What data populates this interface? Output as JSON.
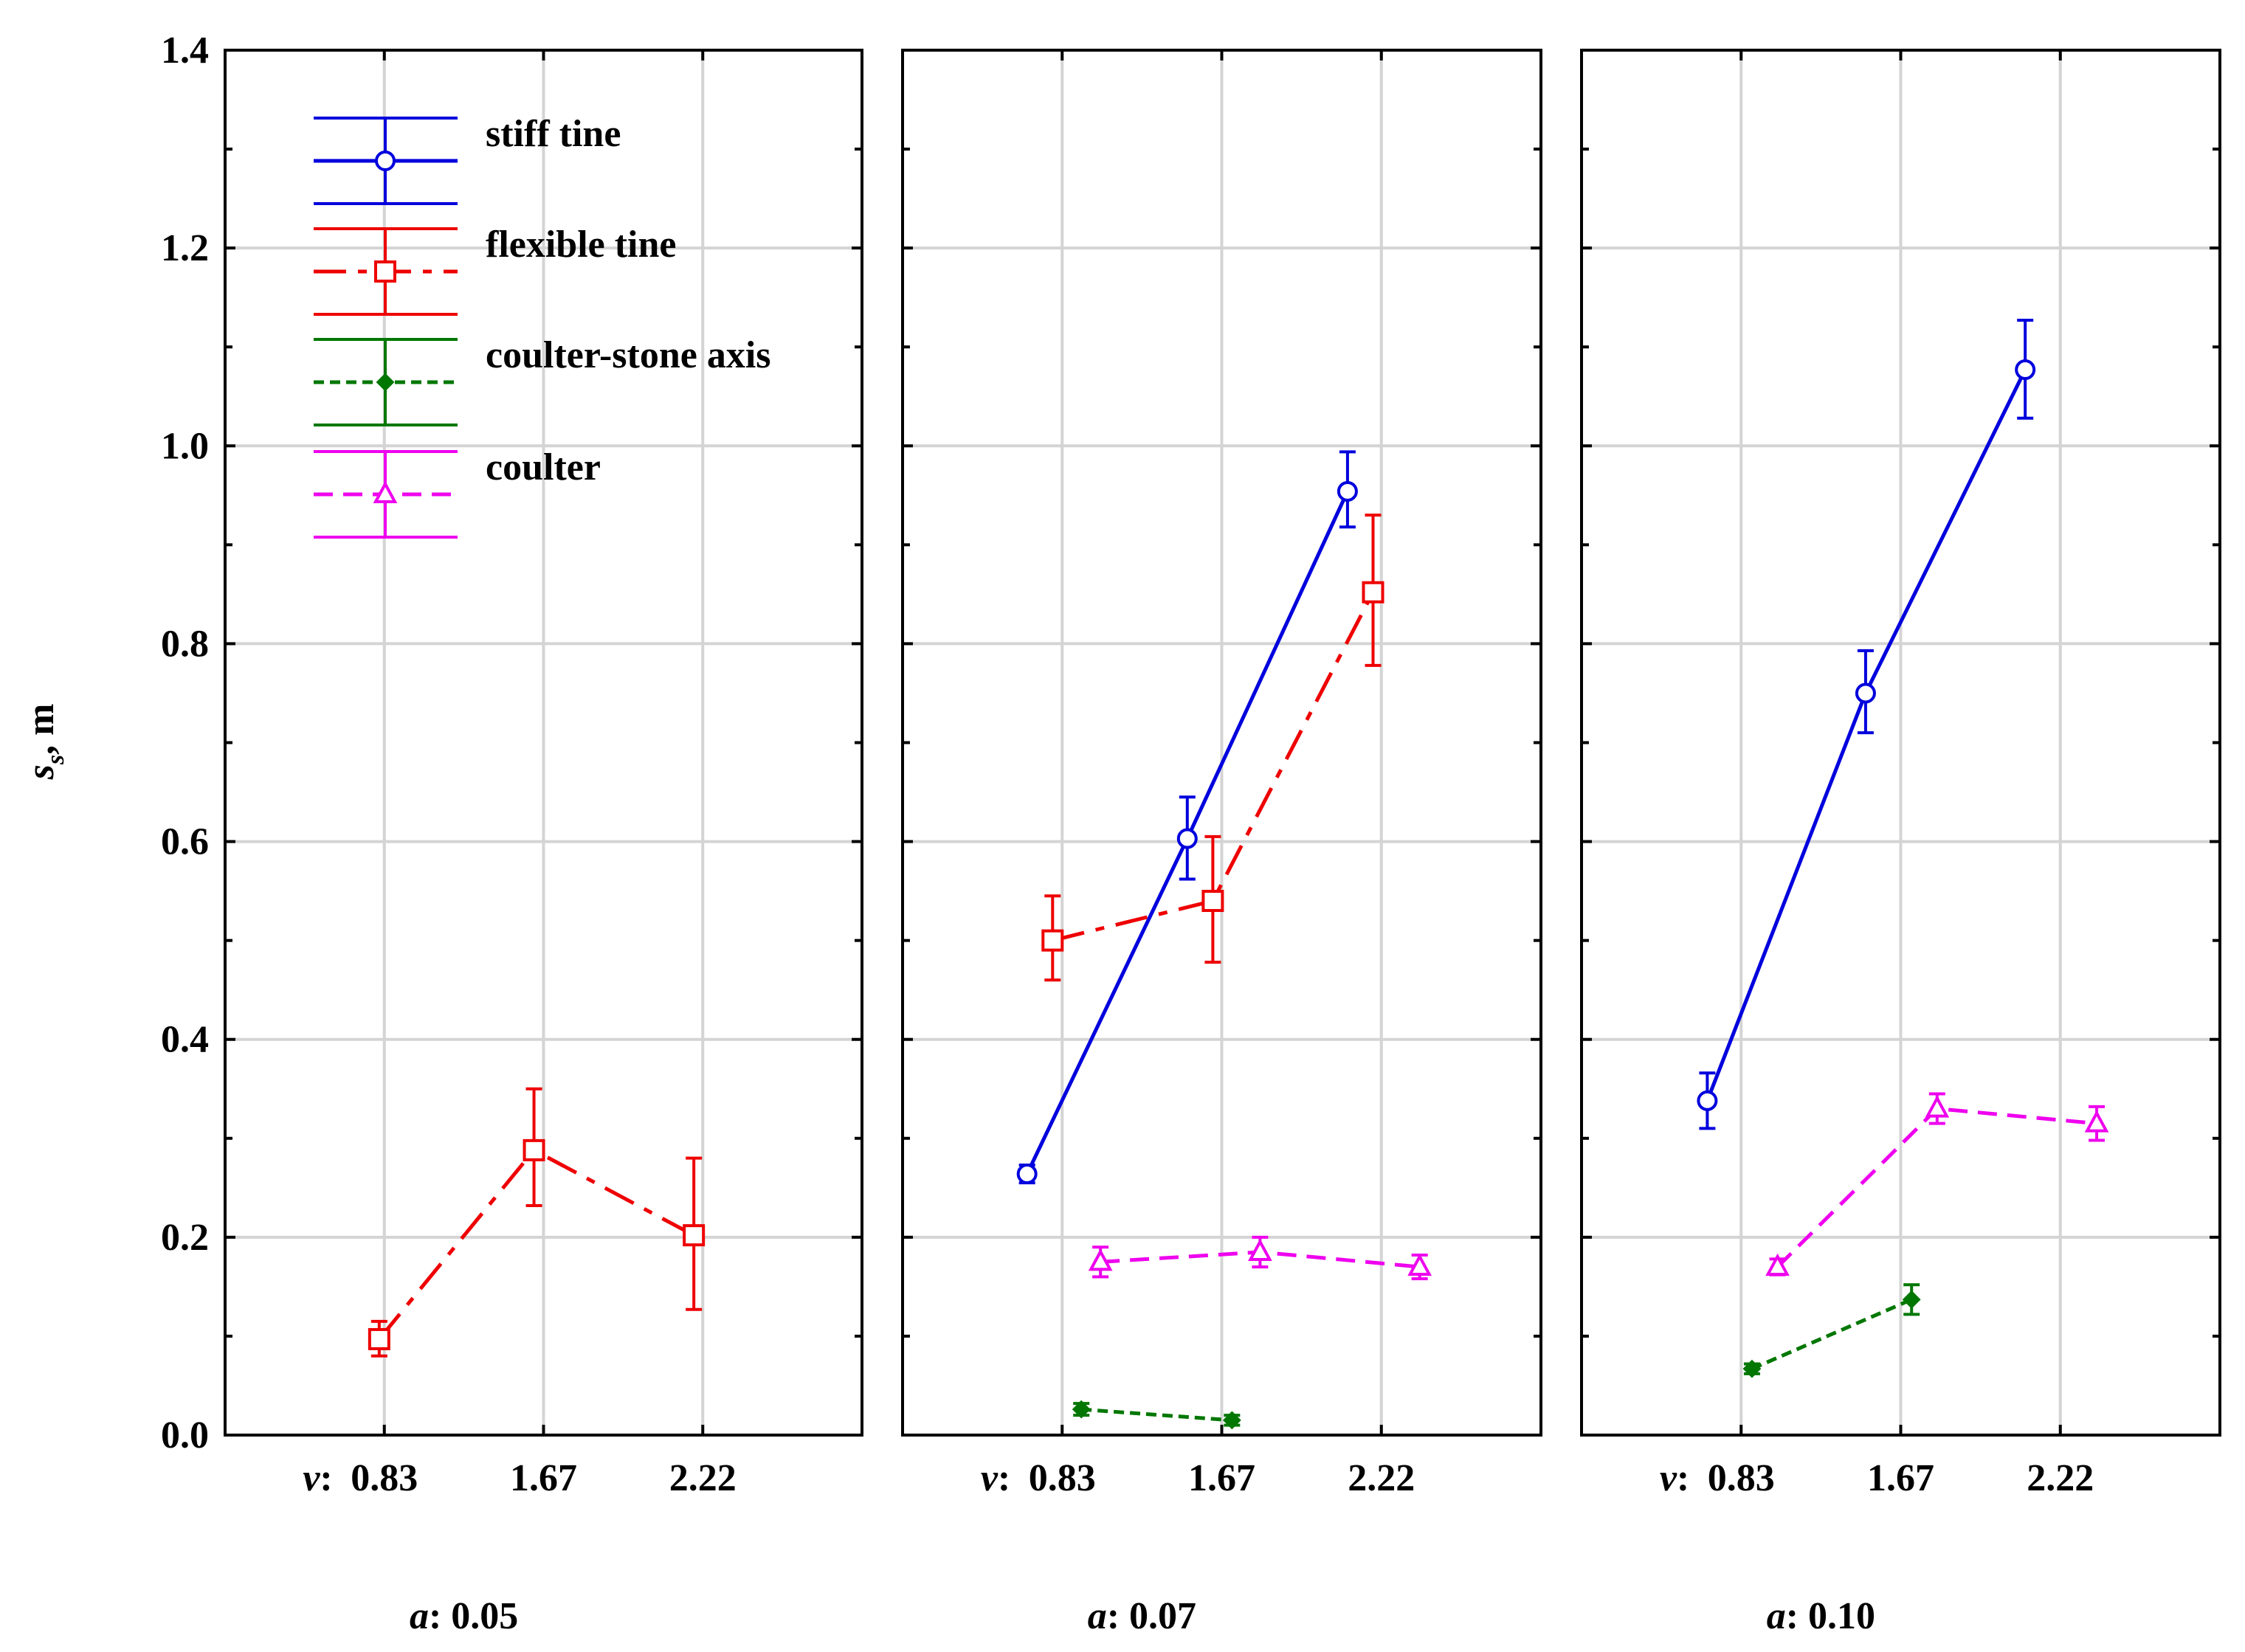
{
  "chart_data": {
    "type": "line",
    "layout": "three-panel",
    "ylabel": "s",
    "ylabel_sub": "s",
    "ylabel_unit": ", m",
    "ylim": [
      0,
      1.4
    ],
    "yticks": [
      "0.0",
      "0.2",
      "0.4",
      "0.6",
      "0.8",
      "1.0",
      "1.2",
      "1.4"
    ],
    "xlabel_prefix": "v:",
    "categories": [
      "0.83",
      "1.67",
      "2.22"
    ],
    "legend_position": "top-left",
    "legend": [
      {
        "label": "stiff tine",
        "color": "#0000dd",
        "marker": "circle",
        "dash": "solid"
      },
      {
        "label": "flexible tine",
        "color": "#ee0000",
        "marker": "square",
        "dash": "dashdot"
      },
      {
        "label": "coulter-stone axis",
        "color": "#007700",
        "marker": "diamond",
        "dash": "dotted"
      },
      {
        "label": "coulter",
        "color": "#ee00ee",
        "marker": "triangle",
        "dash": "dashed"
      }
    ],
    "panels": [
      {
        "title_prefix": "a",
        "title_value": ": 0.05",
        "series": [
          {
            "name": "flexible tine",
            "x": [
              0.83,
              1.67,
              2.22
            ],
            "values": [
              0.097,
              0.288,
              0.202
            ],
            "err_low": [
              0.08,
              0.232,
              0.127
            ],
            "err_high": [
              0.115,
              0.35,
              0.28
            ]
          }
        ]
      },
      {
        "title_prefix": "a",
        "title_value": ": 0.07",
        "series": [
          {
            "name": "stiff tine",
            "x": [
              0.83,
              1.67,
              2.22
            ],
            "values": [
              0.264,
              0.603,
              0.954
            ],
            "err_low": [
              0.255,
              0.562,
              0.918
            ],
            "err_high": [
              0.273,
              0.645,
              0.994
            ]
          },
          {
            "name": "flexible tine",
            "x": [
              0.83,
              1.67,
              2.22
            ],
            "values": [
              0.5,
              0.54,
              0.852
            ],
            "err_low": [
              0.46,
              0.478,
              0.778
            ],
            "err_high": [
              0.545,
              0.605,
              0.93
            ]
          },
          {
            "name": "coulter-stone axis",
            "x": [
              0.83,
              1.67
            ],
            "values": [
              0.026,
              0.015
            ],
            "err_low": [
              0.02,
              0.01
            ],
            "err_high": [
              0.032,
              0.02
            ]
          },
          {
            "name": "coulter",
            "x": [
              0.83,
              1.67,
              2.22
            ],
            "values": [
              0.175,
              0.185,
              0.17
            ],
            "err_low": [
              0.16,
              0.17,
              0.158
            ],
            "err_high": [
              0.19,
              0.2,
              0.182
            ]
          }
        ]
      },
      {
        "title_prefix": "a",
        "title_value": ": 0.10",
        "series": [
          {
            "name": "stiff tine",
            "x": [
              0.83,
              1.67,
              2.22
            ],
            "values": [
              0.338,
              0.75,
              1.077
            ],
            "err_low": [
              0.31,
              0.71,
              1.028
            ],
            "err_high": [
              0.366,
              0.793,
              1.127
            ]
          },
          {
            "name": "coulter-stone axis",
            "x": [
              0.83,
              1.67
            ],
            "values": [
              0.067,
              0.137
            ],
            "err_low": [
              0.062,
              0.122
            ],
            "err_high": [
              0.072,
              0.152
            ]
          },
          {
            "name": "coulter",
            "x": [
              0.83,
              1.67,
              2.22
            ],
            "values": [
              0.17,
              0.33,
              0.315
            ],
            "err_low": [
              0.162,
              0.315,
              0.298
            ],
            "err_high": [
              0.178,
              0.345,
              0.332
            ]
          }
        ]
      }
    ]
  }
}
